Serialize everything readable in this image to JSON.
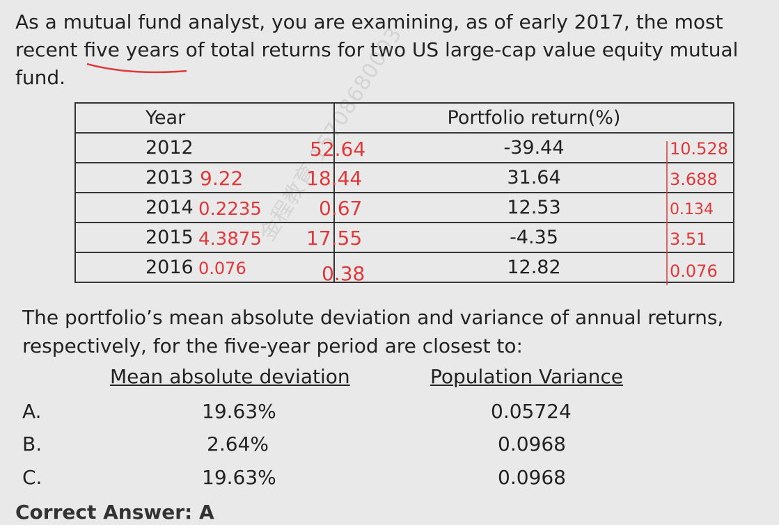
{
  "question": "As a mutual fund analyst, you are examining, as of early 2017, the most recent five years of total returns for two US large-cap value equity mutual fund.",
  "table": {
    "headers": [
      "Year",
      "Portfolio return(%)"
    ],
    "rows": [
      {
        "year": "2012",
        "ret": "-39.44"
      },
      {
        "year": "2013",
        "ret": "31.64"
      },
      {
        "year": "2014",
        "ret": "12.53"
      },
      {
        "year": "2015",
        "ret": "-4.35"
      },
      {
        "year": "2016",
        "ret": "12.82"
      }
    ]
  },
  "prompt": "The portfolio’s mean absolute deviation and variance of annual returns, respectively, for the five-year period are closest to:",
  "options": {
    "header_mad": "Mean absolute deviation",
    "header_var": "Population Variance",
    "items": [
      {
        "letter": "A.",
        "mad": "19.63%",
        "var": "0.05724"
      },
      {
        "letter": "B.",
        "mad": "2.64%",
        "var": "0.0968"
      },
      {
        "letter": "C.",
        "mad": "19.63%",
        "var": "0.0968"
      }
    ]
  },
  "answer": "Correct Answer: A",
  "annotations": {
    "after_year": [
      "9.22",
      "0.2235",
      "4.3875",
      "0.076"
    ],
    "middle": [
      "52.64",
      "18.44",
      "0.67",
      "17.55",
      "0.38"
    ],
    "right": [
      "10.528",
      "3.688",
      "0.134",
      "3.51",
      "0.076"
    ]
  },
  "watermark": "金程教育 15708680003",
  "ink_color": "#e0383b"
}
